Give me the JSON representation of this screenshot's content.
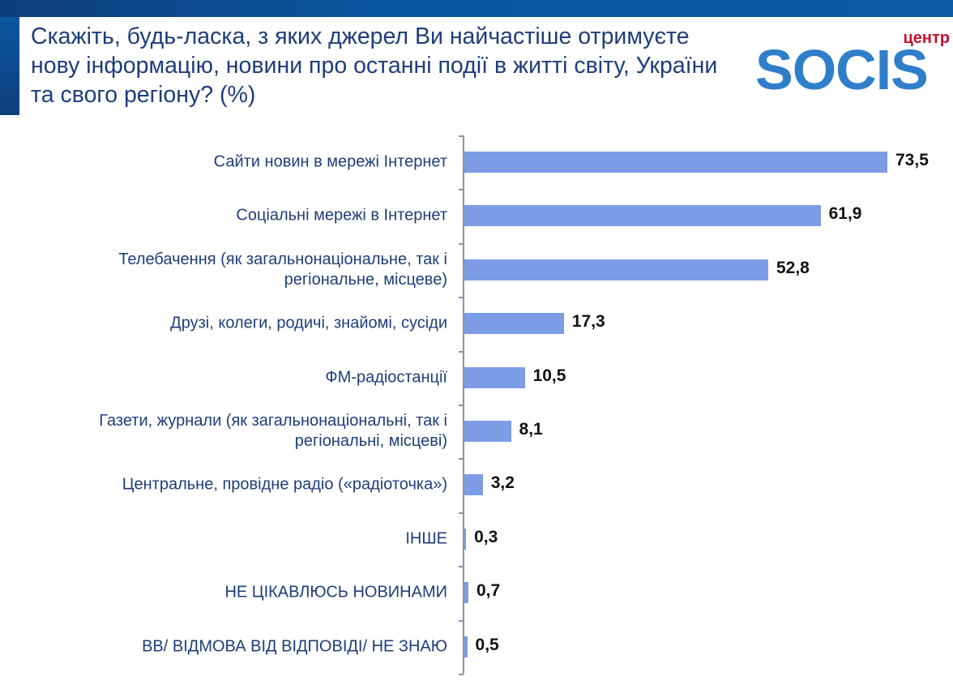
{
  "header": {
    "title": "Скажіть, будь-ласка, з яких джерел Ви найчастіше отримуєте нову інформацію, новини про останні події в житті світу, України та свого регіону? (%)",
    "logo_small": "центр",
    "logo_main": "SOCIS"
  },
  "colors": {
    "bar": "#7d9ce6",
    "title": "#1f3d7a",
    "header_band": "#0b5aa6",
    "logo_blue": "#2f7ec9",
    "logo_red": "#c8102e"
  },
  "chart_data": {
    "type": "bar",
    "orientation": "horizontal",
    "title": "Скажіть, будь-ласка, з яких джерел Ви найчастіше отримуєте нову інформацію, новини про останні події в житті світу, України та свого регіону? (%)",
    "xlabel": "",
    "ylabel": "",
    "grid": false,
    "categories": [
      "Сайти новин в мережі Інтернет",
      "Соціальні мережі в Інтернет",
      "Телебачення (як загальнонаціональне, так і регіональне, місцеве)",
      "Друзі, колеги, родичі, знайомі, сусіди",
      "ФМ-радіостанції",
      "Газети, журнали (як загальнонаціональні, так і регіональні, місцеві)",
      "Центральне, провідне радіо («радіоточка»)",
      "ІНШЕ",
      "НЕ ЦІКАВЛЮСЬ НОВИНАМИ",
      "ВВ/ ВІДМОВА ВІД ВІДПОВІДІ/ НЕ ЗНАЮ"
    ],
    "values": [
      73.5,
      61.9,
      52.8,
      17.3,
      10.5,
      8.1,
      3.2,
      0.3,
      0.7,
      0.5
    ],
    "value_labels": [
      "73,5",
      "61,9",
      "52,8",
      "17,3",
      "10,5",
      "8,1",
      "3,2",
      "0,3",
      "0,7",
      "0,5"
    ]
  },
  "rows": [
    {
      "label": "Сайти новин в мережі Інтернет",
      "value": "73,5"
    },
    {
      "label": "Соціальні мережі в Інтернет",
      "value": "61,9"
    },
    {
      "label": "Телебачення (як загальнонаціональне, так і регіональне, місцеве)",
      "value": "52,8"
    },
    {
      "label": "Друзі, колеги, родичі, знайомі, сусіди",
      "value": "17,3"
    },
    {
      "label": "ФМ-радіостанції",
      "value": "10,5"
    },
    {
      "label": "Газети, журнали (як загальнонаціональні, так і регіональні, місцеві)",
      "value": "8,1"
    },
    {
      "label": "Центральне, провідне радіо («радіоточка»)",
      "value": "3,2"
    },
    {
      "label": "ІНШЕ",
      "value": "0,3"
    },
    {
      "label": "НЕ ЦІКАВЛЮСЬ НОВИНАМИ",
      "value": "0,7"
    },
    {
      "label": "ВВ/ ВІДМОВА ВІД ВІДПОВІДІ/ НЕ ЗНАЮ",
      "value": "0,5"
    }
  ]
}
